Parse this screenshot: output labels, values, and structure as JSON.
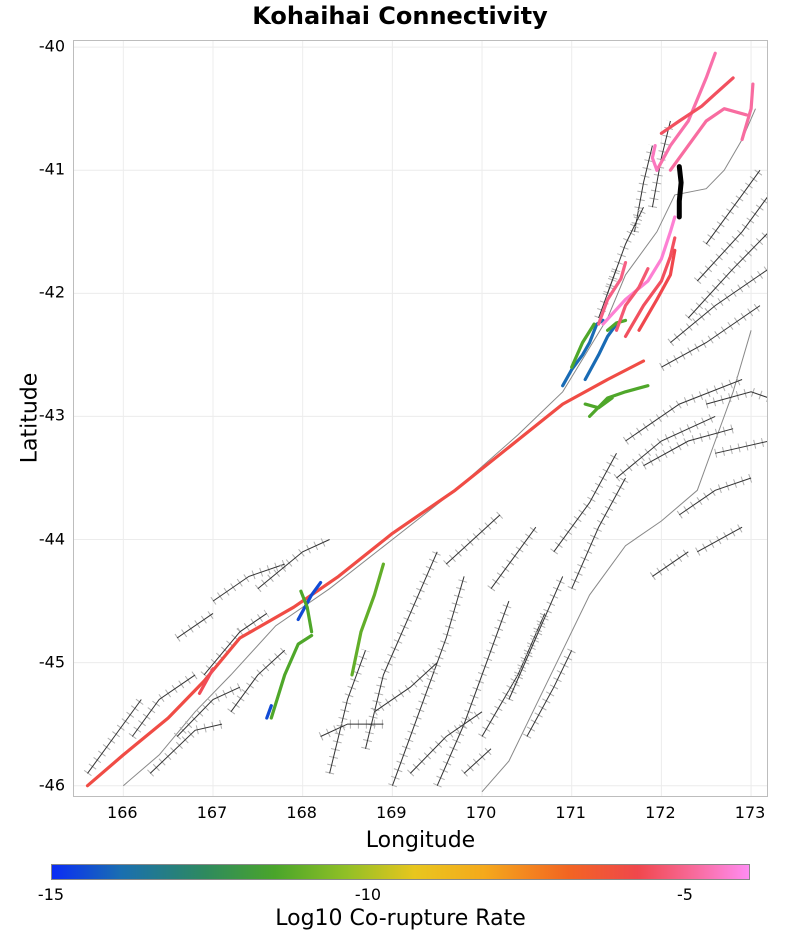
{
  "title": "Kohaihai Connectivity",
  "axes": {
    "xlabel": "Longitude",
    "ylabel": "Latitude",
    "xticks": [
      "166",
      "167",
      "168",
      "169",
      "170",
      "171",
      "172",
      "173"
    ],
    "yticks": [
      "-40",
      "-41",
      "-42",
      "-43",
      "-44",
      "-45",
      "-46"
    ],
    "xlim": [
      165.45,
      173.2
    ],
    "ylim": [
      -46.1,
      -39.95
    ]
  },
  "colorbar": {
    "label": "Log10 Co-rupture Rate",
    "ticks": [
      "-15",
      "-10",
      "-5"
    ],
    "range": [
      -15,
      -4.3
    ]
  },
  "colors": {
    "background_fault": "#333333",
    "fault_outline": "#b0b0b0",
    "coast": "#888888",
    "selected_fault": "#000000"
  },
  "map_data": {
    "coastline": [
      [
        173.05,
        -40.5
      ],
      [
        172.9,
        -40.75
      ],
      [
        172.7,
        -41.0
      ],
      [
        172.5,
        -41.15
      ],
      [
        172.15,
        -41.2
      ],
      [
        171.95,
        -41.5
      ],
      [
        171.6,
        -41.85
      ],
      [
        171.4,
        -42.2
      ],
      [
        171.15,
        -42.5
      ],
      [
        170.9,
        -42.8
      ],
      [
        170.4,
        -43.15
      ],
      [
        169.7,
        -43.6
      ],
      [
        169.0,
        -44.0
      ],
      [
        168.3,
        -44.4
      ],
      [
        167.7,
        -44.7
      ],
      [
        167.2,
        -45.1
      ],
      [
        166.8,
        -45.4
      ],
      [
        166.4,
        -45.75
      ],
      [
        166.0,
        -46.0
      ]
    ],
    "east_coast": [
      [
        173.0,
        -42.3
      ],
      [
        172.8,
        -42.8
      ],
      [
        172.6,
        -43.2
      ],
      [
        172.4,
        -43.6
      ],
      [
        172.0,
        -43.85
      ],
      [
        171.6,
        -44.05
      ],
      [
        171.2,
        -44.45
      ],
      [
        170.9,
        -44.9
      ],
      [
        170.6,
        -45.35
      ],
      [
        170.3,
        -45.8
      ],
      [
        170.0,
        -46.05
      ]
    ],
    "background_faults": [
      [
        [
          166.9,
          -45.1
        ],
        [
          167.3,
          -44.75
        ],
        [
          167.6,
          -44.6
        ]
      ],
      [
        [
          167.2,
          -45.4
        ],
        [
          167.5,
          -45.1
        ],
        [
          167.8,
          -44.9
        ]
      ],
      [
        [
          166.6,
          -45.6
        ],
        [
          167.0,
          -45.3
        ],
        [
          167.3,
          -45.2
        ]
      ],
      [
        [
          166.3,
          -45.9
        ],
        [
          166.8,
          -45.55
        ],
        [
          167.1,
          -45.5
        ]
      ],
      [
        [
          168.7,
          -45.7
        ],
        [
          168.9,
          -45.1
        ],
        [
          169.2,
          -44.6
        ],
        [
          169.5,
          -44.1
        ]
      ],
      [
        [
          169.0,
          -46.0
        ],
        [
          169.3,
          -45.4
        ],
        [
          169.6,
          -44.8
        ],
        [
          169.8,
          -44.3
        ]
      ],
      [
        [
          169.5,
          -46.0
        ],
        [
          169.8,
          -45.5
        ],
        [
          170.1,
          -44.9
        ],
        [
          170.3,
          -44.5
        ]
      ],
      [
        [
          170.0,
          -45.6
        ],
        [
          170.4,
          -45.1
        ],
        [
          170.7,
          -44.6
        ]
      ],
      [
        [
          170.3,
          -45.3
        ],
        [
          170.6,
          -44.8
        ],
        [
          170.9,
          -44.3
        ]
      ],
      [
        [
          168.3,
          -45.9
        ],
        [
          168.5,
          -45.3
        ],
        [
          168.7,
          -44.9
        ]
      ],
      [
        [
          169.2,
          -45.9
        ],
        [
          169.6,
          -45.6
        ],
        [
          170.0,
          -45.4
        ]
      ],
      [
        [
          168.8,
          -45.4
        ],
        [
          169.2,
          -45.2
        ],
        [
          169.5,
          -45.0
        ]
      ],
      [
        [
          171.0,
          -44.4
        ],
        [
          171.3,
          -43.9
        ],
        [
          171.6,
          -43.5
        ]
      ],
      [
        [
          170.8,
          -44.1
        ],
        [
          171.2,
          -43.7
        ],
        [
          171.5,
          -43.3
        ]
      ],
      [
        [
          171.5,
          -43.5
        ],
        [
          172.0,
          -43.2
        ],
        [
          172.6,
          -43.0
        ]
      ],
      [
        [
          171.6,
          -43.2
        ],
        [
          172.2,
          -42.9
        ],
        [
          172.9,
          -42.7
        ]
      ],
      [
        [
          171.8,
          -43.4
        ],
        [
          172.3,
          -43.2
        ],
        [
          172.8,
          -43.1
        ]
      ],
      [
        [
          172.0,
          -42.6
        ],
        [
          172.5,
          -42.4
        ],
        [
          173.1,
          -42.1
        ]
      ],
      [
        [
          172.1,
          -42.4
        ],
        [
          172.6,
          -42.1
        ],
        [
          173.2,
          -41.8
        ]
      ],
      [
        [
          172.3,
          -42.2
        ],
        [
          172.8,
          -41.8
        ],
        [
          173.2,
          -41.5
        ]
      ],
      [
        [
          172.4,
          -41.9
        ],
        [
          172.9,
          -41.5
        ],
        [
          173.2,
          -41.2
        ]
      ],
      [
        [
          172.5,
          -41.6
        ],
        [
          172.9,
          -41.2
        ],
        [
          173.1,
          -41.0
        ]
      ],
      [
        [
          171.9,
          -41.3
        ],
        [
          172.0,
          -40.9
        ],
        [
          172.1,
          -40.6
        ]
      ],
      [
        [
          171.7,
          -41.5
        ],
        [
          171.8,
          -41.1
        ],
        [
          171.9,
          -40.8
        ]
      ],
      [
        [
          171.4,
          -42.0
        ],
        [
          171.6,
          -41.6
        ],
        [
          171.8,
          -41.3
        ]
      ],
      [
        [
          171.3,
          -42.2
        ],
        [
          171.5,
          -41.8
        ]
      ],
      [
        [
          172.2,
          -43.8
        ],
        [
          172.6,
          -43.6
        ],
        [
          173.0,
          -43.5
        ]
      ],
      [
        [
          172.4,
          -44.1
        ],
        [
          172.9,
          -43.9
        ]
      ],
      [
        [
          171.9,
          -44.3
        ],
        [
          172.3,
          -44.1
        ]
      ],
      [
        [
          172.5,
          -42.9
        ],
        [
          173.0,
          -42.8
        ],
        [
          173.2,
          -42.85
        ]
      ],
      [
        [
          172.6,
          -43.3
        ],
        [
          173.2,
          -43.2
        ]
      ],
      [
        [
          166.6,
          -44.8
        ],
        [
          167.0,
          -44.6
        ]
      ],
      [
        [
          167.0,
          -44.5
        ],
        [
          167.4,
          -44.3
        ],
        [
          167.8,
          -44.2
        ]
      ],
      [
        [
          167.5,
          -44.4
        ],
        [
          168.0,
          -44.1
        ],
        [
          168.3,
          -44.0
        ]
      ],
      [
        [
          166.1,
          -45.6
        ],
        [
          166.4,
          -45.3
        ],
        [
          166.8,
          -45.1
        ]
      ],
      [
        [
          165.6,
          -45.9
        ],
        [
          165.9,
          -45.6
        ],
        [
          166.2,
          -45.3
        ]
      ],
      [
        [
          169.6,
          -44.2
        ],
        [
          169.9,
          -44.0
        ],
        [
          170.2,
          -43.8
        ]
      ],
      [
        [
          170.1,
          -44.4
        ],
        [
          170.4,
          -44.1
        ],
        [
          170.6,
          -43.9
        ]
      ],
      [
        [
          170.5,
          -45.6
        ],
        [
          170.8,
          -45.2
        ],
        [
          171.0,
          -44.9
        ]
      ],
      [
        [
          169.8,
          -45.9
        ],
        [
          170.1,
          -45.7
        ]
      ],
      [
        [
          168.2,
          -45.6
        ],
        [
          168.5,
          -45.5
        ],
        [
          168.9,
          -45.5
        ]
      ]
    ],
    "ruptures": [
      {
        "value": -6.2,
        "points": [
          [
            165.6,
            -46.0
          ],
          [
            166.0,
            -45.75
          ],
          [
            166.5,
            -45.45
          ],
          [
            166.9,
            -45.15
          ],
          [
            167.3,
            -44.8
          ],
          [
            167.9,
            -44.55
          ],
          [
            168.4,
            -44.3
          ],
          [
            169.0,
            -43.95
          ],
          [
            169.7,
            -43.6
          ],
          [
            170.3,
            -43.25
          ],
          [
            170.9,
            -42.9
          ],
          [
            171.4,
            -42.7
          ],
          [
            171.8,
            -42.55
          ]
        ]
      },
      {
        "value": -5.9,
        "points": [
          [
            166.85,
            -45.25
          ],
          [
            167.0,
            -45.05
          ]
        ]
      },
      {
        "value": -14.5,
        "points": [
          [
            167.95,
            -44.65
          ],
          [
            168.1,
            -44.45
          ],
          [
            168.2,
            -44.35
          ]
        ]
      },
      {
        "value": -11.5,
        "points": [
          [
            167.65,
            -45.45
          ],
          [
            167.8,
            -45.1
          ],
          [
            167.95,
            -44.85
          ],
          [
            168.1,
            -44.78
          ]
        ]
      },
      {
        "value": -11.5,
        "points": [
          [
            168.1,
            -44.75
          ],
          [
            168.05,
            -44.55
          ],
          [
            167.98,
            -44.42
          ]
        ]
      },
      {
        "value": -11.2,
        "points": [
          [
            168.55,
            -45.1
          ],
          [
            168.65,
            -44.75
          ],
          [
            168.8,
            -44.45
          ],
          [
            168.9,
            -44.2
          ]
        ]
      },
      {
        "value": -14.5,
        "points": [
          [
            167.6,
            -45.45
          ],
          [
            167.65,
            -45.35
          ]
        ]
      },
      {
        "value": -11.5,
        "points": [
          [
            171.2,
            -43.0
          ],
          [
            171.4,
            -42.85
          ],
          [
            171.6,
            -42.8
          ],
          [
            171.85,
            -42.75
          ]
        ]
      },
      {
        "value": -11.5,
        "points": [
          [
            171.15,
            -42.9
          ],
          [
            171.3,
            -42.93
          ],
          [
            171.45,
            -42.85
          ]
        ]
      },
      {
        "value": -14.0,
        "points": [
          [
            170.9,
            -42.75
          ],
          [
            171.0,
            -42.62
          ],
          [
            171.12,
            -42.5
          ],
          [
            171.2,
            -42.4
          ],
          [
            171.28,
            -42.25
          ],
          [
            171.35,
            -42.22
          ]
        ]
      },
      {
        "value": -14.0,
        "points": [
          [
            171.15,
            -42.7
          ],
          [
            171.3,
            -42.5
          ],
          [
            171.4,
            -42.35
          ],
          [
            171.5,
            -42.25
          ]
        ]
      },
      {
        "value": -11.5,
        "points": [
          [
            171.0,
            -42.6
          ],
          [
            171.12,
            -42.4
          ],
          [
            171.25,
            -42.25
          ]
        ]
      },
      {
        "value": -11.5,
        "points": [
          [
            171.4,
            -42.3
          ],
          [
            171.5,
            -42.24
          ],
          [
            171.6,
            -42.22
          ]
        ]
      },
      {
        "value": -4.6,
        "points": [
          [
            171.35,
            -42.25
          ],
          [
            171.6,
            -42.05
          ],
          [
            171.85,
            -41.9
          ],
          [
            172.0,
            -41.72
          ],
          [
            172.1,
            -41.5
          ],
          [
            172.15,
            -41.38
          ]
        ]
      },
      {
        "value": -5.6,
        "points": [
          [
            171.5,
            -42.3
          ],
          [
            171.6,
            -42.1
          ],
          [
            171.75,
            -41.95
          ],
          [
            171.85,
            -41.8
          ]
        ]
      },
      {
        "value": -5.8,
        "points": [
          [
            171.6,
            -42.35
          ],
          [
            171.8,
            -42.1
          ],
          [
            172.0,
            -41.9
          ],
          [
            172.1,
            -41.7
          ],
          [
            172.15,
            -41.55
          ]
        ]
      },
      {
        "value": -5.4,
        "points": [
          [
            171.3,
            -42.25
          ],
          [
            171.4,
            -42.05
          ],
          [
            171.55,
            -41.88
          ],
          [
            171.6,
            -41.75
          ]
        ]
      },
      {
        "value": -6.0,
        "points": [
          [
            171.75,
            -42.3
          ],
          [
            171.95,
            -42.05
          ],
          [
            172.1,
            -41.85
          ],
          [
            172.15,
            -41.65
          ]
        ]
      },
      {
        "value": -5.0,
        "points": [
          [
            171.95,
            -41.0
          ],
          [
            172.1,
            -40.8
          ],
          [
            172.3,
            -40.6
          ],
          [
            172.5,
            -40.25
          ],
          [
            172.6,
            -40.05
          ]
        ]
      },
      {
        "value": -5.8,
        "points": [
          [
            172.0,
            -40.7
          ],
          [
            172.2,
            -40.6
          ],
          [
            172.45,
            -40.48
          ],
          [
            172.6,
            -40.38
          ],
          [
            172.8,
            -40.25
          ]
        ]
      },
      {
        "value": -5.1,
        "points": [
          [
            172.1,
            -41.0
          ],
          [
            172.3,
            -40.8
          ],
          [
            172.5,
            -40.6
          ],
          [
            172.7,
            -40.5
          ],
          [
            172.95,
            -40.55
          ]
        ]
      },
      {
        "value": -5.1,
        "points": [
          [
            172.9,
            -40.75
          ],
          [
            173.0,
            -40.5
          ],
          [
            173.02,
            -40.3
          ]
        ]
      },
      {
        "value": -4.8,
        "points": [
          [
            171.95,
            -41.0
          ],
          [
            171.9,
            -40.9
          ],
          [
            171.93,
            -40.8
          ]
        ]
      }
    ],
    "selected_fault": [
      [
        172.2,
        -40.97
      ],
      [
        172.22,
        -41.1
      ],
      [
        172.2,
        -41.25
      ],
      [
        172.2,
        -41.38
      ]
    ]
  }
}
